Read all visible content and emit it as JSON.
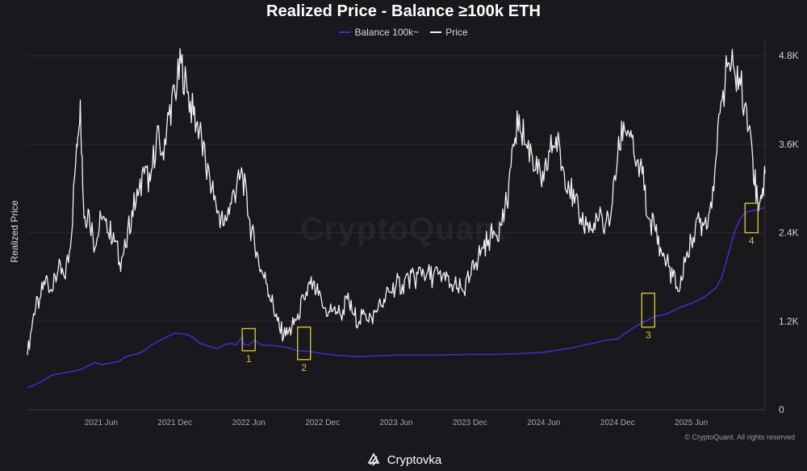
{
  "chart_data": {
    "type": "line",
    "title": "Realized Price - Balance ≥100k ETH",
    "ylabel": "Realized Price",
    "ylim": [
      0,
      4900
    ],
    "y_ticks": [
      {
        "value": 0,
        "label": "0"
      },
      {
        "value": 1200,
        "label": "1.2K"
      },
      {
        "value": 2400,
        "label": "2.4K"
      },
      {
        "value": 3600,
        "label": "3.6K"
      },
      {
        "value": 4800,
        "label": "4.8K"
      }
    ],
    "x_ticks": [
      {
        "month": 6,
        "label": "2021 Jun"
      },
      {
        "month": 12,
        "label": "2021 Dec"
      },
      {
        "month": 18,
        "label": "2022 Jun"
      },
      {
        "month": 24,
        "label": "2022 Dec"
      },
      {
        "month": 30,
        "label": "2023 Jun"
      },
      {
        "month": 36,
        "label": "2023 Dec"
      },
      {
        "month": 42,
        "label": "2024 Jun"
      },
      {
        "month": 48,
        "label": "2024 Dec"
      },
      {
        "month": 54,
        "label": "2025 Jun"
      }
    ],
    "x_range_months": [
      0.0,
      60.0
    ],
    "legend_position": "top-center",
    "grid": "horizontal",
    "series": [
      {
        "name": "Balance 100k~",
        "color": "#3b30c4",
        "points": [
          [
            0.0,
            300
          ],
          [
            0.5,
            330
          ],
          [
            1,
            370
          ],
          [
            1.5,
            420
          ],
          [
            2,
            470
          ],
          [
            3,
            500
          ],
          [
            4,
            530
          ],
          [
            4.5,
            560
          ],
          [
            5,
            600
          ],
          [
            5.5,
            640
          ],
          [
            6,
            610
          ],
          [
            7,
            640
          ],
          [
            7.5,
            660
          ],
          [
            8,
            720
          ],
          [
            9,
            760
          ],
          [
            9.5,
            800
          ],
          [
            10,
            870
          ],
          [
            11,
            960
          ],
          [
            12,
            1040
          ],
          [
            13,
            1020
          ],
          [
            13.5,
            980
          ],
          [
            14,
            900
          ],
          [
            15,
            850
          ],
          [
            15.5,
            830
          ],
          [
            16,
            880
          ],
          [
            16.5,
            900
          ],
          [
            17,
            880
          ],
          [
            17.5,
            1000
          ],
          [
            17.6,
            880
          ],
          [
            18,
            880
          ],
          [
            18.5,
            940
          ],
          [
            19,
            880
          ],
          [
            20,
            870
          ],
          [
            21,
            850
          ],
          [
            22,
            800
          ],
          [
            23,
            790
          ],
          [
            24,
            760
          ],
          [
            25,
            740
          ],
          [
            26,
            730
          ],
          [
            27,
            720
          ],
          [
            28,
            730
          ],
          [
            30,
            740
          ],
          [
            33,
            740
          ],
          [
            36,
            750
          ],
          [
            38,
            750
          ],
          [
            40,
            760
          ],
          [
            42,
            780
          ],
          [
            44,
            830
          ],
          [
            46,
            900
          ],
          [
            47,
            940
          ],
          [
            48,
            960
          ],
          [
            49,
            1080
          ],
          [
            50,
            1180
          ],
          [
            51,
            1260
          ],
          [
            52,
            1300
          ],
          [
            53,
            1380
          ],
          [
            54,
            1440
          ],
          [
            55,
            1520
          ],
          [
            56,
            1650
          ],
          [
            56.5,
            1800
          ],
          [
            57,
            2100
          ],
          [
            57.5,
            2400
          ],
          [
            58,
            2600
          ],
          [
            58.5,
            2680
          ],
          [
            59,
            2700
          ],
          [
            59.4,
            2720
          ],
          [
            60,
            2740
          ]
        ]
      },
      {
        "name": "Price",
        "color": "#f2f2f2",
        "points": [
          [
            0.0,
            740
          ],
          [
            0.5,
            1300
          ],
          [
            1,
            1500
          ],
          [
            1.5,
            1800
          ],
          [
            2,
            1600
          ],
          [
            2.5,
            1900
          ],
          [
            3,
            1800
          ],
          [
            3.5,
            2200
          ],
          [
            4,
            3600
          ],
          [
            4.3,
            4200
          ],
          [
            4.6,
            2600
          ],
          [
            5,
            2700
          ],
          [
            5.5,
            2200
          ],
          [
            6,
            2600
          ],
          [
            6.5,
            2400
          ],
          [
            7,
            2400
          ],
          [
            7.5,
            2000
          ],
          [
            8,
            2200
          ],
          [
            8.5,
            2700
          ],
          [
            9,
            2900
          ],
          [
            9.5,
            3200
          ],
          [
            10,
            3100
          ],
          [
            10.5,
            3700
          ],
          [
            11,
            3500
          ],
          [
            11.5,
            4000
          ],
          [
            12,
            4300
          ],
          [
            12.5,
            4700
          ],
          [
            13,
            4300
          ],
          [
            13.5,
            4000
          ],
          [
            14,
            3800
          ],
          [
            14.5,
            3300
          ],
          [
            15,
            3000
          ],
          [
            15.5,
            2700
          ],
          [
            16,
            2500
          ],
          [
            16.5,
            2800
          ],
          [
            17,
            3000
          ],
          [
            17.5,
            3200
          ],
          [
            18,
            2600
          ],
          [
            18.5,
            2200
          ],
          [
            19,
            1900
          ],
          [
            19.5,
            1700
          ],
          [
            20,
            1400
          ],
          [
            20.5,
            1100
          ],
          [
            21,
            1000
          ],
          [
            21.5,
            1100
          ],
          [
            22,
            1300
          ],
          [
            22.5,
            1500
          ],
          [
            23,
            1700
          ],
          [
            23.5,
            1600
          ],
          [
            24,
            1400
          ],
          [
            24.5,
            1330
          ],
          [
            25,
            1400
          ],
          [
            25.5,
            1280
          ],
          [
            26,
            1500
          ],
          [
            26.5,
            1300
          ],
          [
            27,
            1200
          ],
          [
            27.5,
            1300
          ],
          [
            28,
            1250
          ],
          [
            28.5,
            1350
          ],
          [
            29,
            1500
          ],
          [
            29.5,
            1600
          ],
          [
            30,
            1700
          ],
          [
            30.5,
            1700
          ],
          [
            31,
            1800
          ],
          [
            31.5,
            1750
          ],
          [
            32,
            1900
          ],
          [
            32.5,
            1850
          ],
          [
            33,
            1800
          ],
          [
            33.5,
            1850
          ],
          [
            34,
            1750
          ],
          [
            34.5,
            1700
          ],
          [
            35,
            1650
          ],
          [
            35.5,
            1600
          ],
          [
            36,
            1800
          ],
          [
            36.5,
            2000
          ],
          [
            37,
            2200
          ],
          [
            37.5,
            2300
          ],
          [
            38,
            2400
          ],
          [
            38.5,
            2500
          ],
          [
            39,
            2800
          ],
          [
            39.5,
            3600
          ],
          [
            40,
            4000
          ],
          [
            40.5,
            3600
          ],
          [
            41,
            3500
          ],
          [
            41.5,
            3200
          ],
          [
            42,
            3100
          ],
          [
            42.5,
            3500
          ],
          [
            43,
            3700
          ],
          [
            43.5,
            3300
          ],
          [
            44,
            3100
          ],
          [
            44.5,
            2800
          ],
          [
            45,
            2600
          ],
          [
            45.5,
            2500
          ],
          [
            46,
            2400
          ],
          [
            46.5,
            2600
          ],
          [
            47,
            2500
          ],
          [
            47.5,
            2700
          ],
          [
            48,
            3400
          ],
          [
            48.5,
            3900
          ],
          [
            49,
            3700
          ],
          [
            49.5,
            3300
          ],
          [
            50,
            3200
          ],
          [
            50.5,
            2600
          ],
          [
            51,
            2500
          ],
          [
            51.5,
            2200
          ],
          [
            52,
            2000
          ],
          [
            52.5,
            1800
          ],
          [
            53,
            1600
          ],
          [
            53.5,
            2000
          ],
          [
            54,
            2300
          ],
          [
            54.5,
            2600
          ],
          [
            55,
            2500
          ],
          [
            55.5,
            2700
          ],
          [
            56,
            3400
          ],
          [
            56.5,
            4200
          ],
          [
            57,
            4700
          ],
          [
            57.5,
            4600
          ],
          [
            58,
            4400
          ],
          [
            58.5,
            4100
          ],
          [
            59,
            3400
          ],
          [
            59.4,
            2800
          ],
          [
            59.8,
            3000
          ],
          [
            60,
            3200
          ]
        ]
      }
    ],
    "annotations": [
      {
        "label": "1",
        "x_month": 18.0,
        "y_top": 1100,
        "y_bottom": 800
      },
      {
        "label": "2",
        "x_month": 22.5,
        "y_top": 1120,
        "y_bottom": 680
      },
      {
        "label": "3",
        "x_month": 50.5,
        "y_top": 1580,
        "y_bottom": 1120
      },
      {
        "label": "4",
        "x_month": 58.9,
        "y_top": 2800,
        "y_bottom": 2400
      }
    ],
    "annotation_color": "#d4c236"
  },
  "watermark": "CryptoQuant",
  "copyright": "© CryptoQuant. All rights reserved",
  "brand": "Cryptovka"
}
